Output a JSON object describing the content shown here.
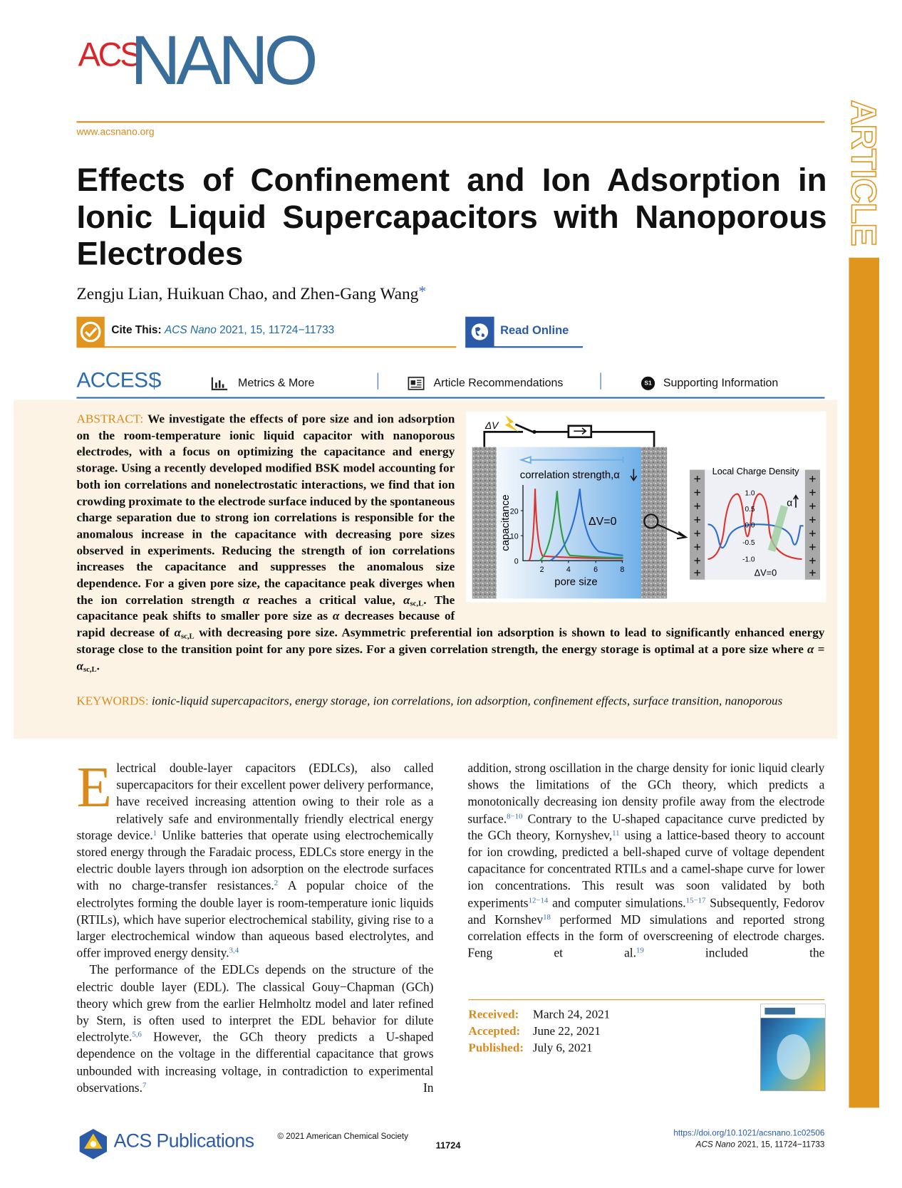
{
  "journal": {
    "logo_acs": "ACS",
    "logo_nano": "NANO",
    "url": "www.acsnano.org",
    "section": "ARTICLE"
  },
  "title": "Effects of Confinement and Ion Adsorption in Ionic Liquid Supercapacitors with Nanoporous Electrodes",
  "authors": "Zengju Lian, Huikuan Chao, and Zhen-Gang Wang",
  "corresponding_mark": "*",
  "cite": {
    "label": "Cite This:",
    "journal": "ACS Nano",
    "details": "2021, 15, 11724−11733"
  },
  "read_online": "Read Online",
  "access": {
    "label": "ACCESS",
    "tabs": [
      "Metrics & More",
      "Article Recommendations",
      "Supporting Information"
    ],
    "si_icon": "S1"
  },
  "abstract": {
    "label": "ABSTRACT:",
    "segments": [
      {
        "t": "We investigate the effects of pore size and ion adsorption on the room-temperature ionic liquid capacitor with nanoporous electrodes, with a focus on optimizing the capacitance and energy storage. Using a recently developed modified BSK model accounting for both ion correlations and nonelectrostatic interactions, we find that ion crowding proximate to the electrode surface induced by the spontaneous charge separation due to strong ion correlations is responsible for the anomalous increase in the capacitance with decreasing pore sizes observed in experiments. Reducing the strength of ion correlations increases the capacitance and suppresses the anomalous size dependence. For a given pore size, the capacitance peak diverges when the ion correlation strength "
      },
      {
        "i": "α"
      },
      {
        "t": " reaches a critical value, "
      },
      {
        "i": "α"
      },
      {
        "sub": "sc,L"
      },
      {
        "t": ". The capacitance peak shifts to smaller pore size as "
      },
      {
        "i": "α"
      },
      {
        "t": " decreases because of rapid decrease of "
      },
      {
        "i": "α"
      },
      {
        "sub": "sc,L"
      },
      {
        "t": " with decreasing pore size. Asymmetric preferential ion adsorption is shown to lead to significantly enhanced energy storage close to the transition point for any pore sizes. For a given correlation strength, the energy storage is optimal at a pore size where "
      },
      {
        "i": "α"
      },
      {
        "t": " = "
      },
      {
        "i": "α"
      },
      {
        "sub": "sc,L"
      },
      {
        "t": "."
      }
    ]
  },
  "toc_graphic": {
    "delta_v": "ΔV",
    "arrow_label": "correlation strength,α",
    "y_label": "capacitance",
    "y_ticks": [
      "0",
      "10",
      "20"
    ],
    "x_ticks": [
      "2",
      "4",
      "6",
      "8"
    ],
    "x_label": "pore size",
    "center_label": "ΔV=0",
    "inset_title": "Local Charge Density",
    "inset_alpha": "α",
    "inset_ticks": [
      "1.0",
      "0.5",
      "0.0",
      "-0.5",
      "-1.0"
    ],
    "inset_label": "ΔV=0"
  },
  "keywords": {
    "label": "KEYWORDS:",
    "text": "ionic-liquid supercapacitors, energy storage, ion correlations, ion adsorption, confinement effects, surface transition, nanoporous"
  },
  "body": {
    "drop_cap": "E",
    "left": [
      [
        {
          "t": "lectrical double-layer capacitors (EDLCs), also called supercapacitors for their excellent power delivery performance, have received increasing attention owing to their role as a relatively safe and environmentally friendly electrical energy storage device."
        },
        {
          "sup": "1"
        },
        {
          "t": " Unlike batteries that operate using electrochemically stored energy through the Faradaic process, EDLCs store energy in the electric double layers through ion adsorption on the electrode surfaces with no charge-transfer resistances."
        },
        {
          "sup": "2"
        },
        {
          "t": " A popular choice of the electrolytes forming the double layer is room-temperature ionic liquids (RTILs), which have superior electrochemical stability, giving rise to a larger electrochemical window than aqueous based electrolytes, and offer improved energy density."
        },
        {
          "sup": "3,4"
        }
      ],
      [
        {
          "t": "The performance of the EDLCs depends on the structure of the electric double layer (EDL). The classical Gouy−Chapman (GCh) theory which grew from the earlier Helmholtz model and later refined by Stern, is often used to interpret the EDL behavior for dilute electrolyte."
        },
        {
          "sup": "5,6"
        },
        {
          "t": " However, the GCh theory predicts a U-shaped dependence on the voltage in the differential capacitance that grows unbounded with increasing voltage, in contradiction to experimental observations."
        },
        {
          "sup": "7"
        },
        {
          "t": " In"
        }
      ]
    ],
    "right": [
      [
        {
          "t": "addition, strong oscillation in the charge density for ionic liquid clearly shows the limitations of the GCh theory, which predicts a monotonically decreasing ion density profile away from the electrode surface."
        },
        {
          "sup": "8−10"
        },
        {
          "t": " Contrary to the U-shaped capacitance curve predicted by the GCh theory, Kornyshev,"
        },
        {
          "sup": "11"
        },
        {
          "t": " using a lattice-based theory to account for ion crowding, predicted a bell-shaped curve of voltage dependent capacitance for concentrated RTILs and a camel-shape curve for lower ion concentrations. This result was soon validated by both experiments"
        },
        {
          "sup": "12−14"
        },
        {
          "t": " and computer simulations."
        },
        {
          "sup": "15−17"
        },
        {
          "t": " Subsequently, Fedorov and Kornshev"
        },
        {
          "sup": "18"
        },
        {
          "t": " performed MD simulations and reported strong correlation effects in the form of overscreening of electrode charges. Feng et al."
        },
        {
          "sup": "19"
        },
        {
          "t": " included the"
        }
      ]
    ]
  },
  "history": [
    {
      "label": "Received:",
      "date": "March 24, 2021"
    },
    {
      "label": "Accepted:",
      "date": "June 22, 2021"
    },
    {
      "label": "Published:",
      "date": "July 6, 2021"
    }
  ],
  "footer": {
    "publisher": "ACS Publications",
    "copyright": "© 2021 American Chemical Society",
    "page": "11724",
    "doi": "https://doi.org/10.1021/acsnano.1c02506",
    "journal": "ACS Nano",
    "citation": "2021, 15, 11724−11733"
  }
}
